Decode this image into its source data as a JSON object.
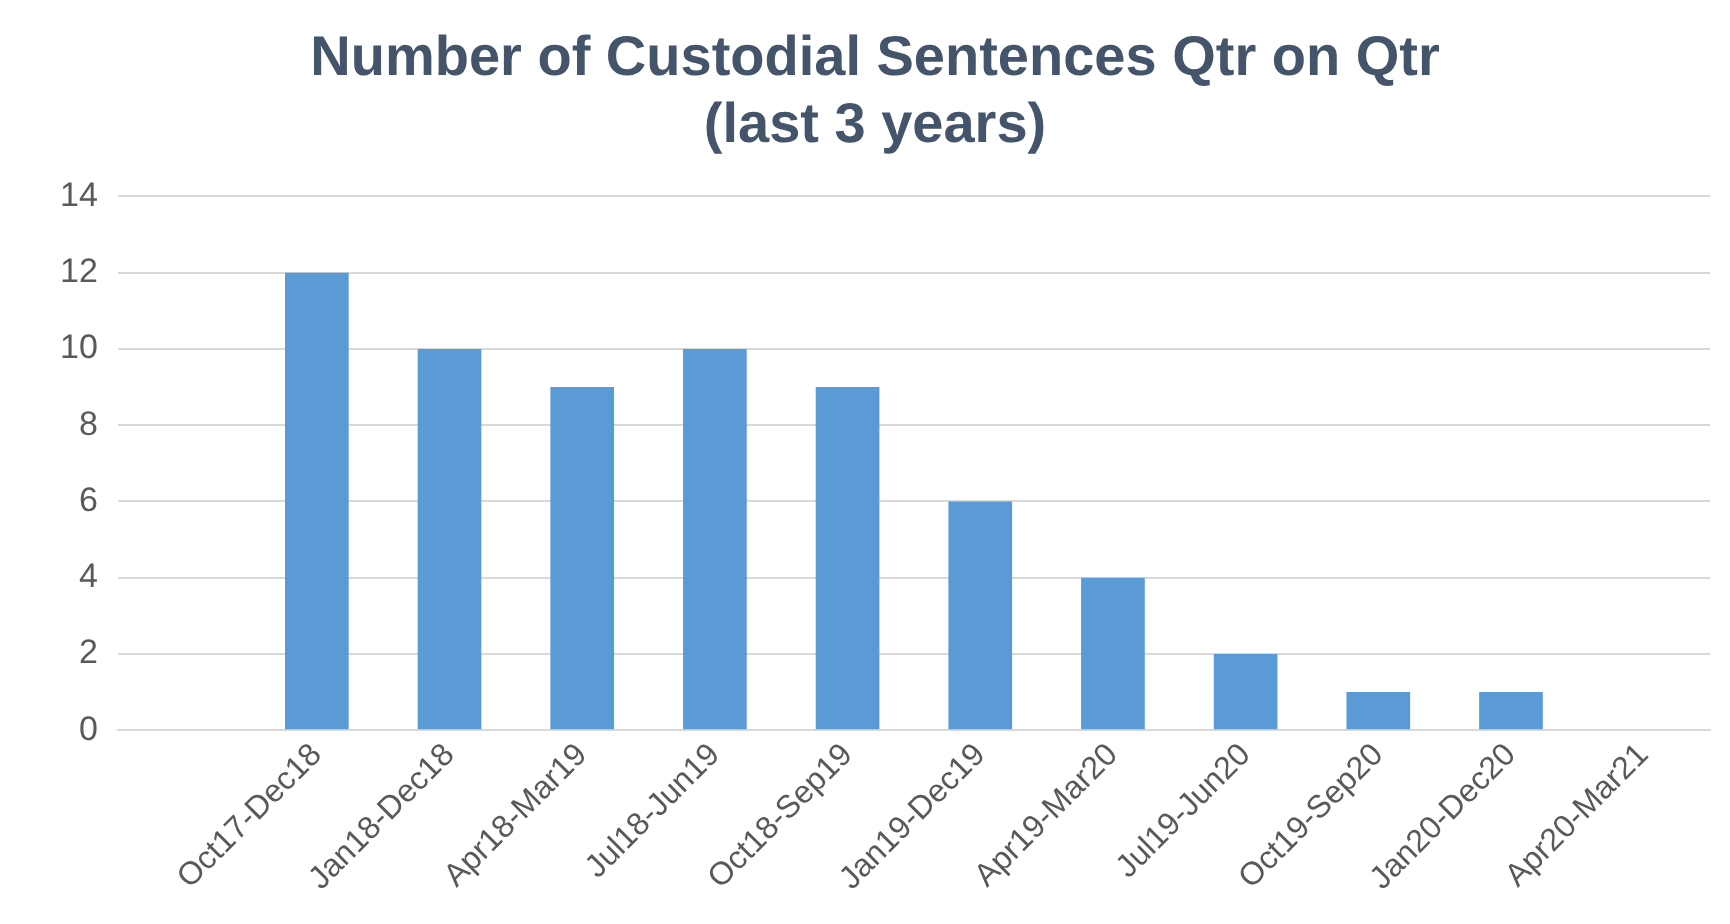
{
  "chart_data": {
    "type": "bar",
    "title": "Number of Custodial Sentences Qtr on Qtr (last 3 years)",
    "categories": [
      null,
      "Oct17-Dec18",
      "Jan18-Dec18",
      "Apr18-Mar19",
      "Jul18-Jun19",
      "Oct18-Sep19",
      "Jan19-Dec19",
      "Apr19-Mar20",
      "Jul19-Jun20",
      "Oct19-Sep20",
      "Jan20-Dec20",
      "Apr20-Mar21"
    ],
    "values": [
      null,
      12,
      10,
      9,
      10,
      9,
      6,
      4,
      2,
      1,
      1,
      0
    ],
    "color": "#5b9bd5",
    "ylim": [
      0,
      14
    ],
    "yticks": [
      0,
      2,
      4,
      6,
      8,
      10,
      12,
      14
    ],
    "grid": "y",
    "legend": false
  }
}
